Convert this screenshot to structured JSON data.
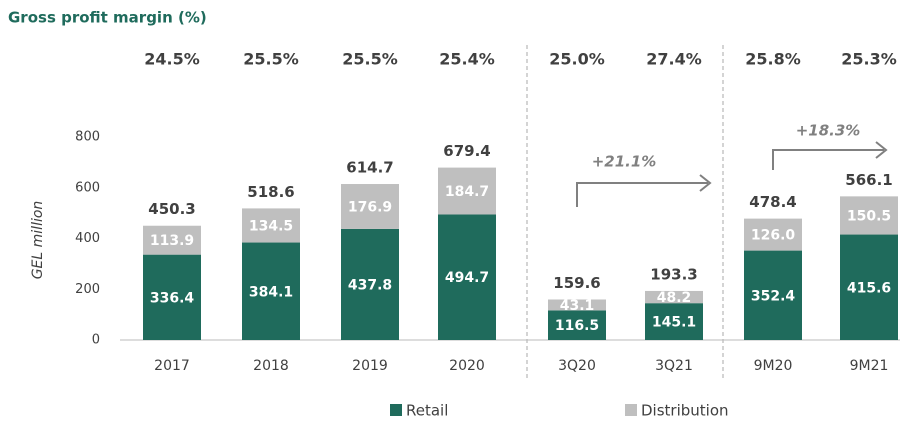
{
  "chart_data": {
    "type": "stacked_bar",
    "title": "Gross profit margin (%)",
    "y_axis_label": "GEL million",
    "categories": [
      "2017",
      "2018",
      "2019",
      "2020",
      "3Q20",
      "3Q21",
      "9M20",
      "9M21"
    ],
    "series": [
      {
        "name": "Retail",
        "color": "#1f6b5c",
        "values": [
          336.4,
          384.1,
          437.8,
          494.7,
          116.5,
          145.1,
          352.4,
          415.6
        ]
      },
      {
        "name": "Distribution",
        "color": "#bfbfbf",
        "values": [
          113.9,
          134.5,
          176.9,
          184.7,
          43.1,
          48.2,
          126.0,
          150.5
        ],
        "value_labels": [
          "113.9",
          "134.5",
          "176.9",
          "184.7",
          "43.1",
          "48.2",
          "126.0",
          "150.5"
        ]
      }
    ],
    "totals": [
      450.3,
      518.6,
      614.7,
      679.4,
      159.6,
      193.3,
      478.4,
      566.1
    ],
    "margins": {
      "values": [
        24.5,
        25.5,
        25.5,
        25.4,
        25.0,
        27.4,
        25.8,
        25.3
      ],
      "value_labels": [
        "24.5%",
        "25.5%",
        "25.5%",
        "25.4%",
        "25.0%",
        "27.4%",
        "25.8%",
        "25.3%"
      ]
    },
    "annotations": [
      "+21.1%",
      "+18.3%"
    ],
    "ylim": [
      0,
      800
    ],
    "yticks": [
      0,
      200,
      400,
      600,
      800
    ],
    "legend": "bottom"
  }
}
